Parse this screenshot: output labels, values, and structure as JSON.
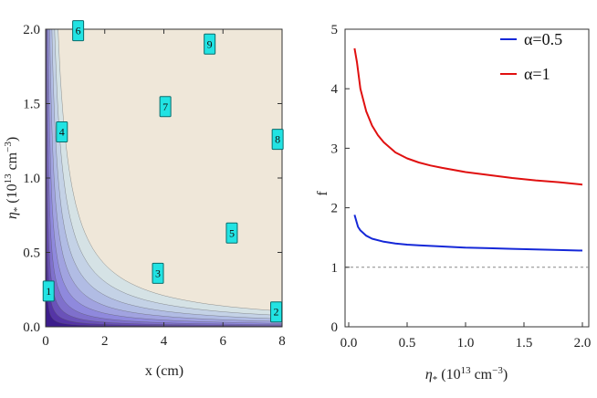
{
  "chart_data": [
    {
      "type": "contour",
      "title": "",
      "xlabel": "x (cm)",
      "ylabel": "η* (10^13 cm^-3)",
      "ylabel_parts": {
        "symbol": "η",
        "sub": "*",
        "open": " (10",
        "exp1": "13",
        "unit": " cm",
        "exp2": "−3",
        "close": ")"
      },
      "xlim": [
        0,
        8
      ],
      "ylim": [
        0,
        2
      ],
      "x_ticks": [
        "0",
        "2",
        "4",
        "6",
        "8"
      ],
      "y_ticks": [
        "0.0",
        "0.5",
        "1.0",
        "1.5",
        "2.0"
      ],
      "levels": [
        1,
        2,
        3,
        4,
        5,
        6,
        7,
        8,
        9
      ],
      "level_labels": [
        {
          "label": "1",
          "x": 0.1,
          "y": 0.24
        },
        {
          "label": "2",
          "x": 7.8,
          "y": 0.1
        },
        {
          "label": "3",
          "x": 3.8,
          "y": 0.36
        },
        {
          "label": "4",
          "x": 0.55,
          "y": 1.31
        },
        {
          "label": "5",
          "x": 6.3,
          "y": 0.63
        },
        {
          "label": "6",
          "x": 1.1,
          "y": 1.99
        },
        {
          "label": "7",
          "x": 4.05,
          "y": 1.48
        },
        {
          "label": "8",
          "x": 7.85,
          "y": 1.26
        },
        {
          "label": "9",
          "x": 5.55,
          "y": 1.9
        }
      ],
      "colors": [
        "#3c1d8c",
        "#5535a6",
        "#6a52b9",
        "#7f70cc",
        "#8f89dd",
        "#a1a3e0",
        "#b1bce4",
        "#c4d2e6",
        "#d5e2e5",
        "#efe7d9"
      ]
    },
    {
      "type": "line",
      "title": "",
      "xlabel": "η* (10^13 cm^-3)",
      "xlabel_parts": {
        "symbol": "η",
        "sub": "*",
        "open": " (10",
        "exp1": "13",
        "unit": " cm",
        "exp2": "−3",
        "close": ")"
      },
      "ylabel": "f",
      "xlim": [
        0,
        2
      ],
      "ylim": [
        0,
        5
      ],
      "x_ticks": [
        "0.0",
        "0.5",
        "1.0",
        "1.5",
        "2.0"
      ],
      "y_ticks": [
        "0",
        "1",
        "2",
        "3",
        "4",
        "5"
      ],
      "reference_line": {
        "y": 1,
        "style": "dashed"
      },
      "legend_position": "top-right",
      "series": [
        {
          "name": "α=0.5",
          "color": "#1528d8",
          "x": [
            0.05,
            0.08,
            0.1,
            0.15,
            0.2,
            0.3,
            0.4,
            0.5,
            0.6,
            0.8,
            1.0,
            1.2,
            1.4,
            1.6,
            1.8,
            2.0
          ],
          "y": [
            1.88,
            1.68,
            1.62,
            1.53,
            1.48,
            1.43,
            1.4,
            1.38,
            1.37,
            1.35,
            1.33,
            1.32,
            1.31,
            1.3,
            1.29,
            1.28
          ]
        },
        {
          "name": "α=1",
          "color": "#e01010",
          "x": [
            0.05,
            0.07,
            0.1,
            0.15,
            0.2,
            0.25,
            0.3,
            0.4,
            0.5,
            0.6,
            0.7,
            0.8,
            1.0,
            1.2,
            1.4,
            1.6,
            1.8,
            2.0
          ],
          "y": [
            4.68,
            4.45,
            4.0,
            3.62,
            3.38,
            3.22,
            3.1,
            2.93,
            2.83,
            2.76,
            2.71,
            2.67,
            2.6,
            2.55,
            2.5,
            2.46,
            2.43,
            2.39
          ]
        }
      ]
    }
  ]
}
